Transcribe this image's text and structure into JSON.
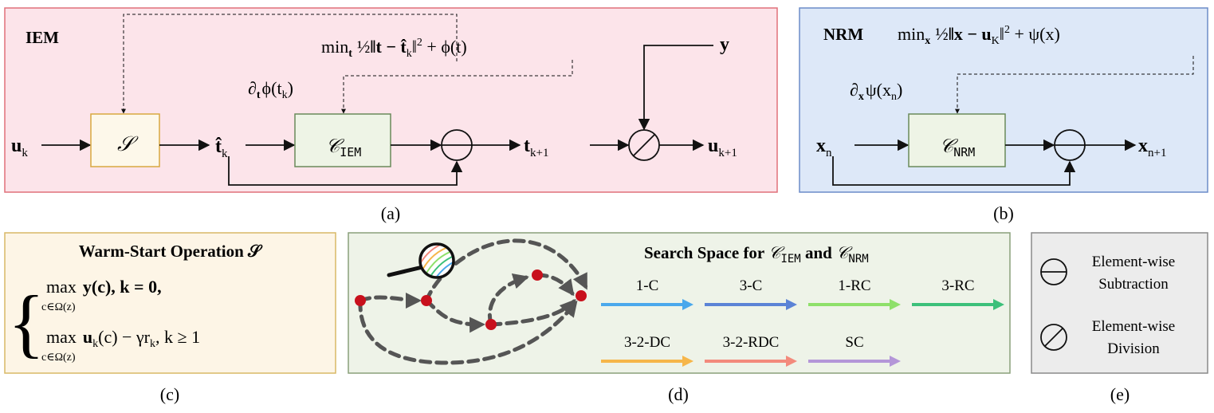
{
  "panel_a": {
    "label": "IEM",
    "caption": "(a)",
    "objective": {
      "min": "min",
      "min_sub": "t",
      "half": "½",
      "norm_open": "‖t − ",
      "t_hat": "t̂",
      "t_sub": "k",
      "norm_close": "‖",
      "sq": "2",
      "plus_phi": " + ϕ(t)"
    },
    "grad": {
      "partial": "∂",
      "sub": "t",
      "body": "ϕ(t",
      "k": "k",
      "close": ")"
    },
    "input": {
      "main": "u",
      "sub": "k"
    },
    "warm_block": "𝒮",
    "t_hat": {
      "main": "t̂",
      "sub": "k"
    },
    "conv_block": {
      "main": "𝒞",
      "sub": "IEM"
    },
    "t_next": {
      "main": "t",
      "sub": "k+1"
    },
    "y": "y",
    "output": {
      "main": "u",
      "sub": "k+1"
    }
  },
  "panel_b": {
    "label": "NRM",
    "caption": "(b)",
    "objective": {
      "min": "min",
      "min_sub": "x",
      "half": "½",
      "norm_open": "‖x − u",
      "u_sub": "K",
      "norm_close": "‖",
      "sq": "2",
      "plus_psi": " + ψ(x)"
    },
    "grad": {
      "partial": "∂",
      "sub": "x",
      "body": "ψ(x",
      "n": "n",
      "close": ")"
    },
    "input": {
      "main": "x",
      "sub": "n"
    },
    "conv_block": {
      "main": "𝒞",
      "sub": "NRM"
    },
    "output": {
      "main": "x",
      "sub": "n+1"
    }
  },
  "panel_c": {
    "title": "Warm-Start Operation 𝒮",
    "caption": "(c)",
    "case1": {
      "op": "max",
      "under": "c∈Ω(z)",
      "expr": "y(c),  k = 0,"
    },
    "case2": {
      "op": "max",
      "under": "c∈Ω(z)",
      "expr": "u",
      "expr_sub": "k",
      "expr_rest": "(c) − γr",
      "r_sub": "k",
      "cond": ",  k ≥ 1"
    }
  },
  "panel_d": {
    "title_prefix": "Search Space for ",
    "c1": "𝒞",
    "c1_sub": "IEM",
    "and": " and ",
    "c2": "𝒞",
    "c2_sub": "NRM",
    "caption": "(d)",
    "ops": [
      {
        "label": "1-C",
        "color": "#4aa8ec"
      },
      {
        "label": "3-C",
        "color": "#5b83d6"
      },
      {
        "label": "1-RC",
        "color": "#8ee06a"
      },
      {
        "label": "3-RC",
        "color": "#3cc07a"
      },
      {
        "label": "3-2-DC",
        "color": "#f6b64a"
      },
      {
        "label": "3-2-RDC",
        "color": "#f38a7c"
      },
      {
        "label": "SC",
        "color": "#b496d8"
      }
    ]
  },
  "panel_e": {
    "caption": "(e)",
    "sub_label_1": "Element-wise",
    "sub_label_2": "Subtraction",
    "div_label_1": "Element-wise",
    "div_label_2": "Division"
  },
  "colors": {
    "iem_bg": "#fce4ea",
    "iem_border": "#e0707a",
    "nrm_bg": "#dde8f8",
    "nrm_border": "#6c8cc8",
    "warm_bg": "#fdf5e6",
    "warm_border": "#d8b866",
    "search_bg": "#eef3e8",
    "search_border": "#8aa07a",
    "legend_bg": "#ececec",
    "legend_border": "#8a8a8a",
    "block_s_bg": "#fdf8ea",
    "block_s_border": "#d8a840",
    "block_c_bg": "#eef4e6",
    "block_c_border": "#6a8a5a",
    "node": "#c8101c",
    "dash": "#555555"
  }
}
